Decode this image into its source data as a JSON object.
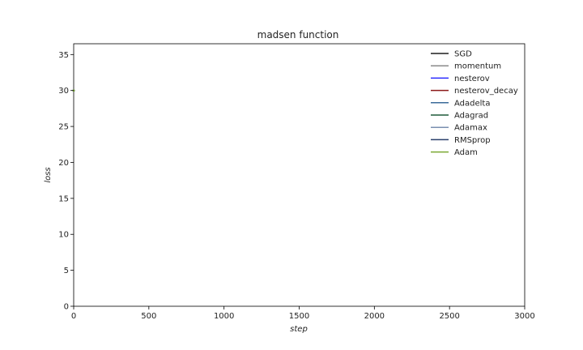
{
  "chart_data": {
    "type": "line",
    "title": "madsen function",
    "xlabel": "step",
    "ylabel": "loss",
    "xlim": [
      0,
      3000
    ],
    "ylim": [
      0,
      36.5
    ],
    "xticks": [
      "0",
      "500",
      "1000",
      "1500",
      "2000",
      "2500",
      "3000"
    ],
    "yticks": [
      "0",
      "5",
      "10",
      "15",
      "20",
      "25",
      "30",
      "35"
    ],
    "grid": false,
    "legend_position": "upper right",
    "series": [
      {
        "name": "SGD",
        "color": "#1f1f1f",
        "x": [
          0
        ],
        "y": [
          30
        ]
      },
      {
        "name": "momentum",
        "color": "#8a8a8a",
        "x": [
          0
        ],
        "y": [
          30
        ]
      },
      {
        "name": "nesterov",
        "color": "#2b2bff",
        "x": [
          0
        ],
        "y": [
          30
        ]
      },
      {
        "name": "nesterov_decay",
        "color": "#8b1a1a",
        "x": [
          0
        ],
        "y": [
          30
        ]
      },
      {
        "name": "Adadelta",
        "color": "#3b6b9a",
        "x": [
          0
        ],
        "y": [
          30
        ]
      },
      {
        "name": "Adagrad",
        "color": "#1f5a3a",
        "x": [
          0
        ],
        "y": [
          30
        ]
      },
      {
        "name": "Adamax",
        "color": "#7a8fb0",
        "x": [
          0
        ],
        "y": [
          30
        ]
      },
      {
        "name": "RMSprop",
        "color": "#2a3f6b",
        "x": [
          0
        ],
        "y": [
          30
        ]
      },
      {
        "name": "Adam",
        "color": "#7aa832",
        "x": [
          0
        ],
        "y": [
          30
        ]
      }
    ]
  }
}
